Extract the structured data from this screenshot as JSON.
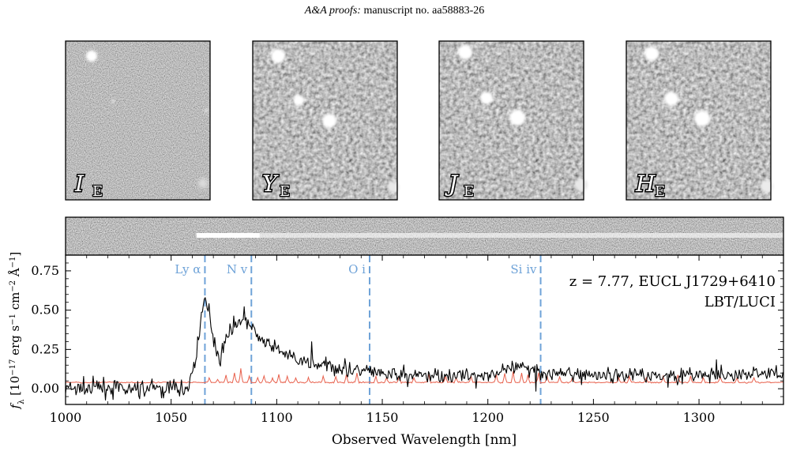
{
  "header": {
    "proofs": "A&A proofs:",
    "manuscript": "manuscript no. aa58883-26"
  },
  "colors": {
    "flux": "#000000",
    "error": "#e8604c",
    "lines": "#6fa3d8"
  },
  "cutouts": [
    {
      "band": "I",
      "sub": "E"
    },
    {
      "band": "Y",
      "sub": "E"
    },
    {
      "band": "J",
      "sub": "E"
    },
    {
      "band": "H",
      "sub": "E"
    }
  ],
  "chart_data": {
    "type": "line",
    "xlabel": "Observed Wavelength [nm]",
    "ylabel_parts": [
      "f",
      "λ",
      " [10",
      "−17",
      " erg s",
      "−1",
      " cm",
      "−2",
      " Å",
      "−1",
      "]"
    ],
    "xlim": [
      1000,
      1340
    ],
    "ylim": [
      -0.1,
      0.85
    ],
    "xticks": [
      1000,
      1050,
      1100,
      1150,
      1200,
      1250,
      1300
    ],
    "yticks": [
      0.0,
      0.25,
      0.5,
      0.75
    ],
    "ytick_labels": [
      "0.00",
      "0.25",
      "0.50",
      "0.75"
    ],
    "grid": false,
    "annotation": {
      "line1": "z = 7.77, EUCL J1729+6410",
      "line2": "LBT/LUCI"
    },
    "spectral_lines": [
      {
        "label": "Ly α",
        "x": 1066
      },
      {
        "label": "N v",
        "x": 1088
      },
      {
        "label": "O i",
        "x": 1144
      },
      {
        "label": "Si iv",
        "x": 1225
      }
    ],
    "series": [
      {
        "role": "flux",
        "anchors_x": [
          1000,
          1010,
          1020,
          1030,
          1040,
          1050,
          1058,
          1062,
          1064,
          1066,
          1068,
          1070,
          1073,
          1076,
          1079,
          1082,
          1085,
          1088,
          1092,
          1096,
          1100,
          1105,
          1110,
          1115,
          1120,
          1125,
          1130,
          1135,
          1140,
          1145,
          1150,
          1160,
          1170,
          1180,
          1190,
          1200,
          1210,
          1215,
          1220,
          1225,
          1230,
          1240,
          1250,
          1260,
          1270,
          1280,
          1290,
          1300,
          1310,
          1320,
          1330,
          1340
        ],
        "anchors_y": [
          0.0,
          0.0,
          0.01,
          -0.01,
          0.0,
          0.0,
          0.0,
          0.22,
          0.45,
          0.55,
          0.5,
          0.33,
          0.18,
          0.32,
          0.4,
          0.43,
          0.46,
          0.39,
          0.32,
          0.28,
          0.25,
          0.21,
          0.18,
          0.16,
          0.15,
          0.14,
          0.13,
          0.12,
          0.12,
          0.11,
          0.09,
          0.09,
          0.08,
          0.09,
          0.08,
          0.09,
          0.12,
          0.13,
          0.14,
          0.11,
          0.1,
          0.09,
          0.09,
          0.08,
          0.1,
          0.08,
          0.09,
          0.09,
          0.08,
          0.09,
          0.1,
          0.1
        ],
        "noise_before_break": 0.055,
        "noise_after_break": 0.045,
        "break_x": 1063
      },
      {
        "role": "error",
        "baseline": 0.04,
        "sky_line_x": [
          1068,
          1072,
          1076,
          1080,
          1083,
          1087,
          1091,
          1094,
          1098,
          1101,
          1105,
          1109,
          1115,
          1122,
          1128,
          1133,
          1138,
          1147,
          1152,
          1158,
          1165,
          1172,
          1180,
          1185,
          1192,
          1204,
          1208,
          1212,
          1216,
          1219,
          1224,
          1228,
          1234,
          1240,
          1262,
          1267,
          1275,
          1283,
          1290,
          1296,
          1302,
          1310,
          1318,
          1326
        ],
        "sky_line_h": [
          0.03,
          0.02,
          0.05,
          0.06,
          0.09,
          0.04,
          0.03,
          0.04,
          0.03,
          0.05,
          0.04,
          0.03,
          0.03,
          0.04,
          0.04,
          0.05,
          0.06,
          0.04,
          0.03,
          0.04,
          0.03,
          0.05,
          0.04,
          0.03,
          0.04,
          0.05,
          0.06,
          0.07,
          0.06,
          0.05,
          0.06,
          0.04,
          0.04,
          0.03,
          0.03,
          0.04,
          0.03,
          0.04,
          0.05,
          0.04,
          0.03,
          0.04,
          0.03,
          0.03
        ]
      }
    ],
    "trace_2d": {
      "x_start": 1062,
      "x_end": 1340
    }
  }
}
